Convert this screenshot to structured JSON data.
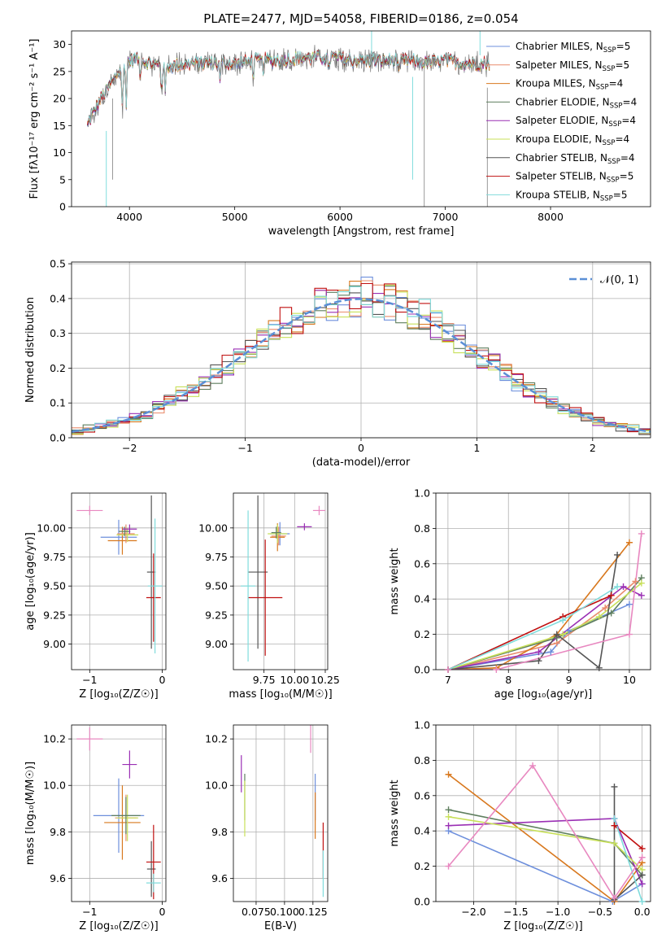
{
  "figure": {
    "title": "PLATE=2477, MJD=54058, FIBERID=0186, z=0.054"
  },
  "series_styles": [
    {
      "name": "Chabrier MILES, N$_{SSP}$=5",
      "label_main": "Chabrier MILES, N",
      "label_sub": "SSP",
      "label_tail": "=5",
      "color": "#6d8fdc"
    },
    {
      "name": "Salpeter MILES, N$_{SSP}$=5",
      "label_main": "Salpeter MILES, N",
      "label_sub": "SSP",
      "label_tail": "=5",
      "color": "#e98c6c"
    },
    {
      "name": "Kroupa MILES, N$_{SSP}$=4",
      "label_main": "Kroupa MILES, N",
      "label_sub": "SSP",
      "label_tail": "=4",
      "color": "#d8781e"
    },
    {
      "name": "Chabrier ELODIE, N$_{SSP}$=4",
      "label_main": "Chabrier ELODIE, N",
      "label_sub": "SSP",
      "label_tail": "=4",
      "color": "#5f7f5f"
    },
    {
      "name": "Salpeter ELODIE, N$_{SSP}$=4",
      "label_main": "Salpeter ELODIE, N",
      "label_sub": "SSP",
      "label_tail": "=4",
      "color": "#9a2fb4"
    },
    {
      "name": "Kroupa ELODIE, N$_{SSP}$=4",
      "label_main": "Kroupa ELODIE, N",
      "label_sub": "SSP",
      "label_tail": "=4",
      "color": "#c8e05a"
    },
    {
      "name": "Chabrier STELIB, N$_{SSP}$=4",
      "label_main": "Chabrier STELIB, N",
      "label_sub": "SSP",
      "label_tail": "=4",
      "color": "#555555"
    },
    {
      "name": "Salpeter STELIB, N$_{SSP}$=5",
      "label_main": "Salpeter STELIB, N",
      "label_sub": "SSP",
      "label_tail": "=5",
      "color": "#c01010"
    },
    {
      "name": "Kroupa STELIB, N$_{SSP}$=5",
      "label_main": "Kroupa STELIB, N",
      "label_sub": "SSP",
      "label_tail": "=5",
      "color": "#80dcdc"
    }
  ],
  "extra_colors": {
    "pink": "#e888c0",
    "normal_line": "#5b8fd6"
  },
  "chart_data": [
    {
      "id": "spectrum",
      "type": "line",
      "xlabel": "wavelength [Angstrom, rest frame]",
      "ylabel": "Flux [f$_\\lambda$10$^{-17}$ erg cm$^{-2}$ s$^{-1}$ A$^{-1}$]",
      "ylabel_display": "Flux [fλ10⁻¹⁷ erg cm⁻² s⁻¹ A⁻¹]",
      "xlim": [
        3450,
        8950
      ],
      "ylim": [
        0,
        32.5
      ],
      "xticks": [
        "4000",
        "5000",
        "6000",
        "7000",
        "8000"
      ],
      "yticks": [
        "0",
        "5",
        "10",
        "15",
        "20",
        "25",
        "30"
      ],
      "legend": "upper right",
      "grid": false,
      "observed_flux_anchors": {
        "x": [
          3600,
          3700,
          3800,
          3900,
          4000,
          4100,
          4200,
          4300,
          4400,
          4600,
          4800,
          5000,
          5200,
          5400,
          5600,
          5800,
          6000,
          6200,
          6400,
          6600,
          6800,
          7000,
          7200,
          7400
        ],
        "y": [
          15,
          19,
          22,
          25,
          27,
          27.5,
          26.5,
          26,
          26,
          26.5,
          26.5,
          26.5,
          27,
          27,
          27.5,
          27.5,
          27.5,
          27,
          27,
          27,
          26.5,
          27,
          26.5,
          26.5
        ]
      },
      "series": [
        {
          "name": "Chabrier MILES, N$_{SSP}$=5"
        },
        {
          "name": "Salpeter MILES, N$_{SSP}$=5"
        },
        {
          "name": "Kroupa MILES, N$_{SSP}$=4"
        },
        {
          "name": "Chabrier ELODIE, N$_{SSP}$=4"
        },
        {
          "name": "Salpeter ELODIE, N$_{SSP}$=4"
        },
        {
          "name": "Kroupa ELODIE, N$_{SSP}$=4"
        },
        {
          "name": "Chabrier STELIB, N$_{SSP}$=4"
        },
        {
          "name": "Salpeter STELIB, N$_{SSP}$=5"
        },
        {
          "name": "Kroupa STELIB, N$_{SSP}$=5"
        }
      ]
    },
    {
      "id": "residuals",
      "type": "line",
      "xlabel": "(data-model)/error",
      "ylabel": "Normed distribution",
      "xlim": [
        -2.5,
        2.5
      ],
      "ylim": [
        0,
        0.505
      ],
      "xticks": [
        "−2",
        "−1",
        "0",
        "1",
        "2"
      ],
      "yticks": [
        "0.0",
        "0.1",
        "0.2",
        "0.3",
        "0.4",
        "0.5"
      ],
      "grid": true,
      "legend": "upper right",
      "normal_label": "𝒩(0, 1)",
      "bin_width": 0.1,
      "series": [
        {
          "name": "Chabrier MILES, N$_{SSP}$=5"
        },
        {
          "name": "Salpeter MILES, N$_{SSP}$=5"
        },
        {
          "name": "Kroupa MILES, N$_{SSP}$=4"
        },
        {
          "name": "Chabrier ELODIE, N$_{SSP}$=4"
        },
        {
          "name": "Salpeter ELODIE, N$_{SSP}$=4"
        },
        {
          "name": "Kroupa ELODIE, N$_{SSP}$=4"
        },
        {
          "name": "Chabrier STELIB, N$_{SSP}$=4"
        },
        {
          "name": "Salpeter STELIB, N$_{SSP}$=5"
        },
        {
          "name": "Kroupa STELIB, N$_{SSP}$=5"
        }
      ]
    },
    {
      "id": "age_vs_Z",
      "type": "scatter",
      "xlabel": "Z [log$_{10}$(Z/Z$_\\odot$)]",
      "xlabel_display": "Z [log₁₀(Z/Z☉)]",
      "ylabel": "age  [log$_{10}$(age/yr)]",
      "ylabel_display": "age  [log₁₀(age/yr)]",
      "xlim": [
        -1.25,
        0.05
      ],
      "ylim": [
        8.78,
        10.3
      ],
      "xticks": [
        "−1",
        "0"
      ],
      "yticks": [
        "9.00",
        "9.25",
        "9.50",
        "9.75",
        "10.00"
      ],
      "grid": true,
      "points": [
        {
          "color": "pink",
          "x": -1.0,
          "xerr": 0.18,
          "y": 10.15,
          "yerr": 0.04
        },
        {
          "color": "#6d8fdc",
          "x": -0.6,
          "xerr": 0.25,
          "y": 9.92,
          "yerr": 0.15
        },
        {
          "color": "#d8781e",
          "x": -0.55,
          "xerr": 0.2,
          "y": 9.89,
          "yerr": 0.12
        },
        {
          "color": "#e98c6c",
          "x": -0.5,
          "xerr": 0.12,
          "y": 9.95,
          "yerr": 0.08
        },
        {
          "color": "#c8e05a",
          "x": -0.48,
          "xerr": 0.15,
          "y": 9.94,
          "yerr": 0.06
        },
        {
          "color": "#5f7f5f",
          "x": -0.52,
          "xerr": 0.08,
          "y": 9.97,
          "yerr": 0.04
        },
        {
          "color": "#9a2fb4",
          "x": -0.45,
          "xerr": 0.1,
          "y": 9.99,
          "yerr": 0.04
        },
        {
          "color": "#555555",
          "x": -0.15,
          "xerr": 0.06,
          "y": 9.62,
          "yerr": 0.66
        },
        {
          "color": "#c01010",
          "x": -0.12,
          "xerr": 0.1,
          "y": 9.4,
          "yerr": 0.38
        },
        {
          "color": "#80dcdc",
          "x": -0.1,
          "xerr": 0.1,
          "y": 9.5,
          "yerr": 0.58
        }
      ]
    },
    {
      "id": "age_vs_mass",
      "type": "scatter",
      "xlabel": "mass [log$_{10}$(M/M$_\\odot$)]",
      "xlabel_display": "mass [log₁₀(M/M☉)]",
      "ylabel": "",
      "xlim": [
        9.5,
        10.27
      ],
      "ylim": [
        8.78,
        10.3
      ],
      "xticks": [
        "9.75",
        "10.00",
        "10.25"
      ],
      "yticks": [
        "9.00",
        "9.25",
        "9.50",
        "9.75",
        "10.00"
      ],
      "grid": true,
      "points": [
        {
          "color": "pink",
          "x": 10.2,
          "xerr": 0.05,
          "y": 10.15,
          "yerr": 0.04
        },
        {
          "color": "#9a2fb4",
          "x": 10.08,
          "xerr": 0.06,
          "y": 10.01,
          "yerr": 0.03
        },
        {
          "color": "#6d8fdc",
          "x": 9.88,
          "xerr": 0.08,
          "y": 9.95,
          "yerr": 0.1
        },
        {
          "color": "#d8781e",
          "x": 9.86,
          "xerr": 0.06,
          "y": 9.92,
          "yerr": 0.12
        },
        {
          "color": "#e98c6c",
          "x": 9.87,
          "xerr": 0.06,
          "y": 9.93,
          "yerr": 0.08
        },
        {
          "color": "#c8e05a",
          "x": 9.86,
          "xerr": 0.08,
          "y": 9.95,
          "yerr": 0.08
        },
        {
          "color": "#5f7f5f",
          "x": 9.85,
          "xerr": 0.04,
          "y": 9.96,
          "yerr": 0.05
        },
        {
          "color": "#555555",
          "x": 9.7,
          "xerr": 0.08,
          "y": 9.62,
          "yerr": 0.66
        },
        {
          "color": "#c01010",
          "x": 9.76,
          "xerr": 0.14,
          "y": 9.4,
          "yerr": 0.5
        },
        {
          "color": "#80dcdc",
          "x": 9.62,
          "xerr": 0.06,
          "y": 9.5,
          "yerr": 0.65
        }
      ]
    },
    {
      "id": "massweight_vs_age",
      "type": "line",
      "xlabel": "age  [log$_{10}$(age/yr)]",
      "xlabel_display": "age  [log₁₀(age/yr)]",
      "ylabel": "mass weight",
      "xlim": [
        6.8,
        10.35
      ],
      "ylim": [
        0,
        1.0
      ],
      "xticks": [
        "7",
        "8",
        "9",
        "10"
      ],
      "yticks": [
        "0.0",
        "0.2",
        "0.4",
        "0.6",
        "0.8",
        "1.0"
      ],
      "grid": true,
      "series": [
        {
          "color": "#6d8fdc",
          "x": [
            7.0,
            8.7,
            9.0,
            10.0
          ],
          "y": [
            0.0,
            0.1,
            0.22,
            0.37
          ]
        },
        {
          "color": "#e98c6c",
          "x": [
            7.0,
            8.8,
            9.6,
            10.1
          ],
          "y": [
            0.0,
            0.15,
            0.35,
            0.5
          ]
        },
        {
          "color": "#d8781e",
          "x": [
            7.0,
            7.8,
            8.8,
            10.0
          ],
          "y": [
            0.0,
            0.01,
            0.2,
            0.72
          ]
        },
        {
          "color": "#5f7f5f",
          "x": [
            7.0,
            8.8,
            9.7,
            10.2
          ],
          "y": [
            0.0,
            0.18,
            0.32,
            0.52
          ]
        },
        {
          "color": "#9a2fb4",
          "x": [
            7.0,
            8.5,
            9.9,
            10.2
          ],
          "y": [
            0.0,
            0.1,
            0.47,
            0.42
          ]
        },
        {
          "color": "#c8e05a",
          "x": [
            7.0,
            8.9,
            9.5,
            10.2
          ],
          "y": [
            0.0,
            0.2,
            0.3,
            0.49
          ]
        },
        {
          "color": "#555555",
          "x": [
            7.0,
            8.5,
            8.8,
            9.5,
            9.8
          ],
          "y": [
            0.0,
            0.05,
            0.2,
            0.01,
            0.65
          ]
        },
        {
          "color": "#c01010",
          "x": [
            7.0,
            8.9,
            9.7
          ],
          "y": [
            0.0,
            0.3,
            0.42
          ]
        },
        {
          "color": "#80dcdc",
          "x": [
            7.0,
            8.9,
            9.8
          ],
          "y": [
            0.0,
            0.28,
            0.47
          ]
        },
        {
          "color": "pink",
          "x": [
            7.0,
            7.8,
            10.0,
            10.2
          ],
          "y": [
            0.0,
            0.0,
            0.2,
            0.77
          ]
        }
      ]
    },
    {
      "id": "mass_vs_Z",
      "type": "scatter",
      "xlabel": "Z [log$_{10}$(Z/Z$_\\odot$)]",
      "xlabel_display": "Z [log₁₀(Z/Z☉)]",
      "ylabel": "mass [log$_{10}$(M/M$_\\odot$)]",
      "ylabel_display": "mass [log₁₀(M/M☉)]",
      "xlim": [
        -1.25,
        0.05
      ],
      "ylim": [
        9.5,
        10.26
      ],
      "xticks": [
        "−1",
        "0"
      ],
      "yticks": [
        "9.6",
        "9.8",
        "10.0",
        "10.2"
      ],
      "grid": true,
      "points": [
        {
          "color": "pink",
          "x": -1.0,
          "xerr": 0.18,
          "y": 10.2,
          "yerr": 0.05
        },
        {
          "color": "#9a2fb4",
          "x": -0.45,
          "xerr": 0.1,
          "y": 10.09,
          "yerr": 0.06
        },
        {
          "color": "#6d8fdc",
          "x": -0.6,
          "xerr": 0.35,
          "y": 9.87,
          "yerr": 0.16
        },
        {
          "color": "#d8781e",
          "x": -0.55,
          "xerr": 0.25,
          "y": 9.84,
          "yerr": 0.16
        },
        {
          "color": "#e98c6c",
          "x": -0.5,
          "xerr": 0.15,
          "y": 9.86,
          "yerr": 0.1
        },
        {
          "color": "#c8e05a",
          "x": -0.48,
          "xerr": 0.15,
          "y": 9.86,
          "yerr": 0.1
        },
        {
          "color": "#5f7f5f",
          "x": -0.5,
          "xerr": 0.2,
          "y": 9.87,
          "yerr": 0.08
        },
        {
          "color": "#555555",
          "x": -0.15,
          "xerr": 0.06,
          "y": 9.64,
          "yerr": 0.12
        },
        {
          "color": "#c01010",
          "x": -0.12,
          "xerr": 0.1,
          "y": 9.67,
          "yerr": 0.16
        },
        {
          "color": "#80dcdc",
          "x": -0.12,
          "xerr": 0.1,
          "y": 9.58,
          "yerr": 0.04
        }
      ]
    },
    {
      "id": "mass_vs_EBV",
      "type": "scatter",
      "xlabel": "E(B-V)",
      "ylabel": "",
      "xlim": [
        0.055,
        0.138
      ],
      "ylim": [
        9.5,
        10.26
      ],
      "xticks": [
        "0.075",
        "0.100",
        "0.125"
      ],
      "yticks": [
        "9.6",
        "9.8",
        "10.0",
        "10.2"
      ],
      "grid": true,
      "points": [
        {
          "color": "pink",
          "x": 0.123,
          "y": 10.2,
          "yerr": 0.06
        },
        {
          "color": "#9a2fb4",
          "x": 0.062,
          "y": 10.05,
          "yerr": 0.08
        },
        {
          "color": "#5f7f5f",
          "x": 0.065,
          "y": 9.95,
          "yerr": 0.1
        },
        {
          "color": "#c8e05a",
          "x": 0.065,
          "y": 9.9,
          "yerr": 0.12
        },
        {
          "color": "#6d8fdc",
          "x": 0.127,
          "y": 9.95,
          "yerr": 0.1
        },
        {
          "color": "#d8781e",
          "x": 0.127,
          "y": 9.87,
          "yerr": 0.1
        },
        {
          "color": "#c01010",
          "x": 0.134,
          "y": 9.72,
          "yerr": 0.12
        },
        {
          "color": "#80dcdc",
          "x": 0.134,
          "y": 9.62,
          "yerr": 0.1
        }
      ]
    },
    {
      "id": "massweight_vs_Z",
      "type": "line",
      "xlabel": "Z [log$_{10}$(Z/Z$_\\odot$)]",
      "xlabel_display": "Z [log₁₀(Z/Z☉)]",
      "ylabel": "mass weight",
      "xlim": [
        -2.45,
        0.1
      ],
      "ylim": [
        0,
        1.0
      ],
      "xticks": [
        "−2.0",
        "−1.5",
        "−1.0",
        "−0.5",
        "0.0"
      ],
      "yticks": [
        "0.0",
        "0.2",
        "0.4",
        "0.6",
        "0.8",
        "1.0"
      ],
      "grid": true,
      "series": [
        {
          "color": "#6d8fdc",
          "x": [
            -2.3,
            -0.35,
            0.0
          ],
          "y": [
            0.4,
            0.0,
            0.1
          ]
        },
        {
          "color": "#d8781e",
          "x": [
            -2.3,
            -0.33,
            0.0
          ],
          "y": [
            0.72,
            0.0,
            0.22
          ]
        },
        {
          "color": "#5f7f5f",
          "x": [
            -2.3,
            -0.33,
            0.0
          ],
          "y": [
            0.52,
            0.33,
            0.15
          ]
        },
        {
          "color": "#9a2fb4",
          "x": [
            -2.3,
            -0.33,
            0.0
          ],
          "y": [
            0.43,
            0.47,
            0.1
          ]
        },
        {
          "color": "#c8e05a",
          "x": [
            -2.3,
            -0.33,
            0.0
          ],
          "y": [
            0.48,
            0.33,
            0.18
          ]
        },
        {
          "color": "#555555",
          "x": [
            -0.33,
            -0.33,
            0.0
          ],
          "y": [
            0.65,
            0.01,
            0.15
          ]
        },
        {
          "color": "#c01010",
          "x": [
            -0.33,
            0.0
          ],
          "y": [
            0.43,
            0.3
          ]
        },
        {
          "color": "#80dcdc",
          "x": [
            -0.33,
            0.0
          ],
          "y": [
            0.47,
            0.0
          ]
        },
        {
          "color": "pink",
          "x": [
            -2.3,
            -1.3,
            -0.33,
            0.0
          ],
          "y": [
            0.2,
            0.77,
            0.02,
            0.25
          ]
        }
      ]
    }
  ]
}
